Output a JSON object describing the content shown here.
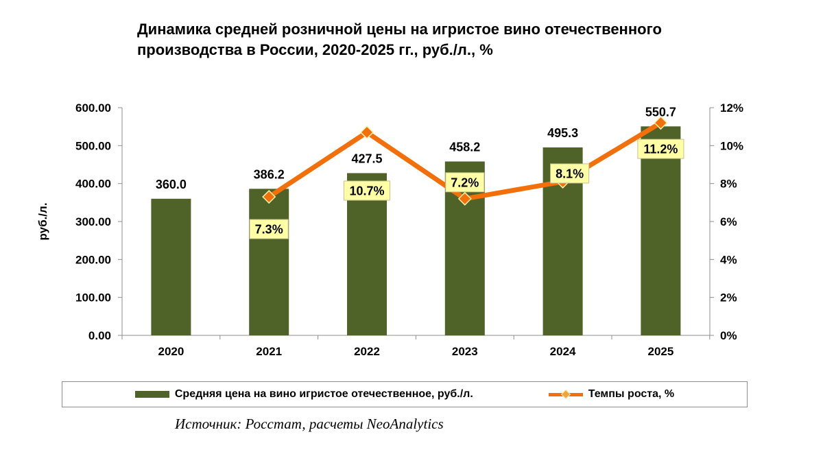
{
  "title": "Динамика средней розничной цены на игристое вино отечественного производства в России, 2020-2025 гг., руб./л., %",
  "source": "Источник: Росстат, расчеты NeoAnalytics",
  "colors": {
    "bar": "#4f6228",
    "line": "#f26f0a",
    "marker": "#f26f0a",
    "marker_border": "#fff2a8",
    "label_box": "#ffffa6",
    "label_border": "#c8c090",
    "axis": "#8c8c8c"
  },
  "chart_data": {
    "type": "bar",
    "categories": [
      "2020",
      "2021",
      "2022",
      "2023",
      "2024",
      "2025"
    ],
    "ylabel": "руб./л.",
    "ylim": [
      0,
      600
    ],
    "y_ticks": [
      "0.00",
      "100.00",
      "200.00",
      "300.00",
      "400.00",
      "500.00",
      "600.00"
    ],
    "y2lim": [
      0,
      12
    ],
    "y2_ticks": [
      "0%",
      "2%",
      "4%",
      "6%",
      "8%",
      "10%",
      "12%"
    ],
    "grid": false,
    "legend_position": "bottom",
    "series": [
      {
        "name": "Средняя цена на вино игристое отечественное, руб./л.",
        "type": "bar",
        "axis": "left",
        "values": [
          360.0,
          386.2,
          427.5,
          458.2,
          495.3,
          550.7
        ],
        "labels": [
          "360.0",
          "386.2",
          "427.5",
          "458.2",
          "495.3",
          "550.7"
        ]
      },
      {
        "name": "Темпы роста, %",
        "type": "line",
        "axis": "right",
        "values": [
          null,
          7.3,
          10.7,
          7.2,
          8.1,
          11.2
        ],
        "labels": [
          null,
          "7.3%",
          "10.7%",
          "7.2%",
          "8.1%",
          "11.2%"
        ]
      }
    ]
  }
}
